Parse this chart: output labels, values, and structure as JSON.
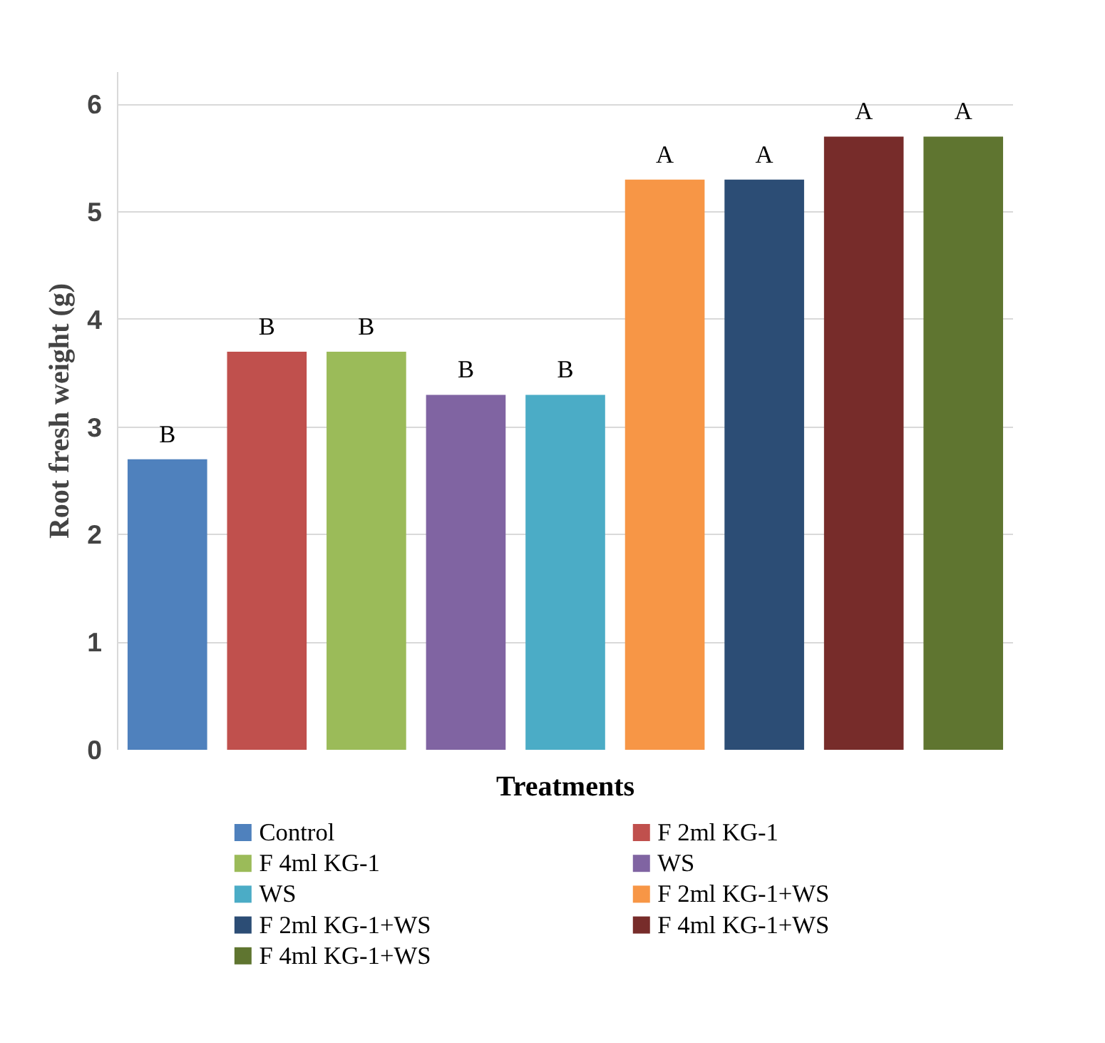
{
  "chart_data": {
    "type": "bar",
    "xlabel": "Treatments",
    "ylabel": "Root fresh weight (g)",
    "categories": [
      null,
      null,
      null,
      null,
      null,
      null,
      null,
      null,
      null
    ],
    "ylim": [
      0,
      6.3
    ],
    "yticks": [
      0,
      1,
      2,
      3,
      4,
      5,
      6
    ],
    "grid": "y",
    "legend": "bottom",
    "series": [
      {
        "name": "Control",
        "color": "#4f81bd",
        "values": [
          2.7,
          null,
          null,
          null,
          null,
          null,
          null,
          null,
          null
        ],
        "value_labels": [
          "B",
          null,
          null,
          null,
          null,
          null,
          null,
          null,
          null
        ]
      },
      {
        "name": "F 2ml KG-1",
        "color": "#c0504d",
        "values": [
          null,
          3.7,
          null,
          null,
          null,
          null,
          null,
          null,
          null
        ],
        "value_labels": [
          null,
          "B",
          null,
          null,
          null,
          null,
          null,
          null,
          null
        ]
      },
      {
        "name": "F 4ml KG-1",
        "color": "#9bbb59",
        "values": [
          null,
          null,
          3.7,
          null,
          null,
          null,
          null,
          null,
          null
        ],
        "value_labels": [
          null,
          null,
          "B",
          null,
          null,
          null,
          null,
          null,
          null
        ]
      },
      {
        "name": "WS",
        "color": "#8064a2",
        "values": [
          null,
          null,
          null,
          3.3,
          null,
          null,
          null,
          null,
          null
        ],
        "value_labels": [
          null,
          null,
          null,
          "B",
          null,
          null,
          null,
          null,
          null
        ]
      },
      {
        "name": "WS",
        "color": "#4bacc6",
        "values": [
          null,
          null,
          null,
          null,
          3.3,
          null,
          null,
          null,
          null
        ],
        "value_labels": [
          null,
          null,
          null,
          null,
          "B",
          null,
          null,
          null,
          null
        ]
      },
      {
        "name": "F 2ml KG-1+WS",
        "color": "#f79646",
        "values": [
          null,
          null,
          null,
          null,
          null,
          5.3,
          null,
          null,
          null
        ],
        "value_labels": [
          null,
          null,
          null,
          null,
          null,
          "A",
          null,
          null,
          null
        ]
      },
      {
        "name": "F 2ml KG-1+WS",
        "color": "#2c4d75",
        "values": [
          null,
          null,
          null,
          null,
          null,
          null,
          5.3,
          null,
          null
        ],
        "value_labels": [
          null,
          null,
          null,
          null,
          null,
          null,
          "A",
          null,
          null
        ]
      },
      {
        "name": "F 4ml KG-1+WS",
        "color": "#772c2a",
        "values": [
          null,
          null,
          null,
          null,
          null,
          null,
          null,
          5.7,
          null
        ],
        "value_labels": [
          null,
          null,
          null,
          null,
          null,
          null,
          null,
          "A",
          null
        ]
      },
      {
        "name": "F 4ml KG-1+WS",
        "color": "#5f7530",
        "values": [
          null,
          null,
          null,
          null,
          null,
          null,
          null,
          null,
          5.7
        ],
        "value_labels": [
          null,
          null,
          null,
          null,
          null,
          null,
          null,
          null,
          "A"
        ]
      }
    ]
  }
}
